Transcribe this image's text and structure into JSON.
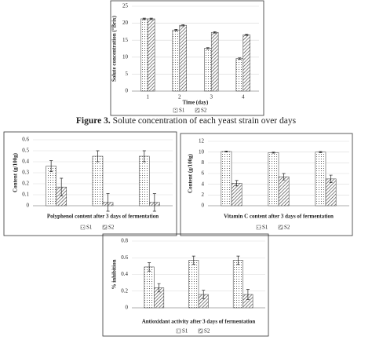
{
  "chart_data": [
    {
      "type": "bar",
      "y_label": "Solute concentration (°Brix)",
      "x_label": "Time (day)",
      "categories": [
        "1",
        "2",
        "3",
        "4"
      ],
      "series": [
        {
          "name": "S1",
          "color": "#555555",
          "pattern": "dots",
          "values": [
            21.3,
            18,
            12.6,
            9.6
          ],
          "errors": [
            0.2,
            0.2,
            0.2,
            0.2
          ]
        },
        {
          "name": "S2",
          "color": "#555555",
          "pattern": "hatch",
          "values": [
            21.3,
            19.4,
            17.3,
            16.6
          ],
          "errors": [
            0.2,
            0.2,
            0.2,
            0.2
          ]
        }
      ],
      "ylim": [
        0,
        25
      ],
      "yticks": [
        0,
        5,
        10,
        15,
        20,
        25
      ],
      "grid": true
    },
    {
      "type": "bar",
      "y_label": "Content (g/100g)",
      "x_label": "Polyphenol content after 3 days of fermentation",
      "categories": [
        null,
        null,
        null
      ],
      "series": [
        {
          "name": "S1",
          "color": "#555555",
          "pattern": "dots",
          "values": [
            0.36,
            0.45,
            0.45
          ],
          "errors": [
            0.05,
            0.05,
            0.05
          ]
        },
        {
          "name": "S2",
          "color": "#555555",
          "pattern": "hatch",
          "values": [
            0.17,
            0.03,
            0.03
          ],
          "errors": [
            0.08,
            0.08,
            0.08
          ]
        }
      ],
      "ylim": [
        0,
        0.6
      ],
      "yticks": [
        0,
        0.1,
        0.2,
        0.3,
        0.4,
        0.5,
        0.6
      ],
      "grid": true
    },
    {
      "type": "bar",
      "y_label": "Content (g/100g)",
      "x_label": "Vitamin C content after 3 days of fermentation",
      "categories": [
        null,
        null,
        null
      ],
      "series": [
        {
          "name": "S1",
          "color": "#555555",
          "pattern": "dots",
          "values": [
            10.1,
            9.9,
            10.0
          ],
          "errors": [
            0.1,
            0.1,
            0.1
          ]
        },
        {
          "name": "S2",
          "color": "#555555",
          "pattern": "hatch",
          "values": [
            4.2,
            5.4,
            5.0
          ],
          "errors": [
            0.5,
            0.6,
            0.7
          ]
        }
      ],
      "ylim": [
        0,
        12
      ],
      "yticks": [
        0,
        2,
        4,
        6,
        8,
        10,
        12
      ],
      "grid": true
    },
    {
      "type": "bar",
      "y_label": "% inhibition",
      "x_label": "Antioxidant activity after 3 days of fermentation",
      "categories": [
        null,
        null,
        null
      ],
      "series": [
        {
          "name": "S1",
          "color": "#555555",
          "pattern": "dots",
          "values": [
            0.49,
            0.57,
            0.57
          ],
          "errors": [
            0.05,
            0.05,
            0.05
          ]
        },
        {
          "name": "S2",
          "color": "#555555",
          "pattern": "hatch",
          "values": [
            0.24,
            0.16,
            0.16
          ],
          "errors": [
            0.05,
            0.05,
            0.06
          ]
        }
      ],
      "ylim": [
        0,
        0.8
      ],
      "yticks": [
        0,
        0.2,
        0.4,
        0.6,
        0.8
      ],
      "grid": true
    }
  ],
  "caption": {
    "label": "Figure 3.",
    "text": "Solute concentration of each yeast strain over days"
  }
}
